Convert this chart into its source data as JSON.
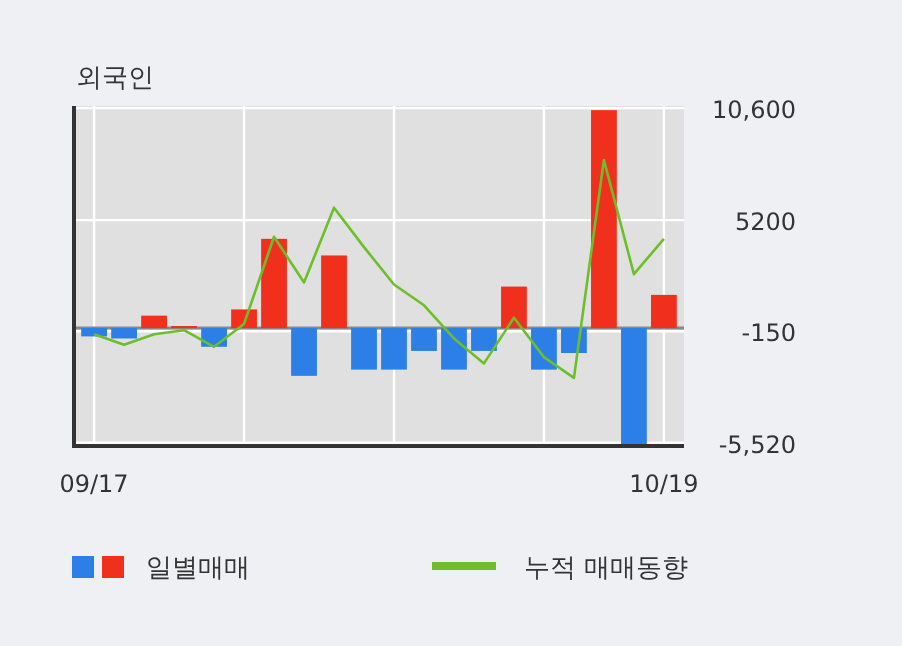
{
  "chart_data": {
    "type": "bar",
    "title": "외국인",
    "categories": [
      "09/17",
      null,
      null,
      null,
      null,
      null,
      null,
      null,
      null,
      null,
      null,
      null,
      null,
      null,
      null,
      null,
      null,
      null,
      null,
      "10/19"
    ],
    "series": [
      {
        "name": "일별매매",
        "colors": [
          "#2b7fe6",
          "#2b7fe6",
          "#f0301c",
          "#f0301c",
          "#2b7fe6",
          "#f0301c",
          "#f0301c",
          "#2b7fe6",
          "#f0301c",
          "#2b7fe6",
          "#2b7fe6",
          "#2b7fe6",
          "#2b7fe6",
          "#2b7fe6",
          "#f0301c",
          "#2b7fe6",
          "#2b7fe6",
          "#f0301c",
          "#2b7fe6",
          "#f0301c"
        ],
        "values": [
          -400,
          -500,
          600,
          100,
          -900,
          900,
          4300,
          -2300,
          3500,
          -2000,
          -2000,
          -1100,
          -2000,
          -1100,
          2000,
          -2000,
          -1200,
          10500,
          -5600,
          1600
        ]
      },
      {
        "name": "누적 매매동향",
        "type": "line",
        "color": "#6cbf2a",
        "values": [
          -300,
          -800,
          -300,
          -100,
          -900,
          200,
          4400,
          2200,
          5800,
          3900,
          2100,
          1100,
          -500,
          -1700,
          500,
          -1400,
          -2400,
          8100,
          2600,
          4300
        ]
      }
    ],
    "ylim": [
      -5680,
      10700
    ],
    "yticks": [
      {
        "value": 10600,
        "label": "10,600"
      },
      5200,
      -150,
      {
        "value": -5520,
        "label": "-5,520"
      }
    ],
    "grid": true,
    "legend": "bottom left"
  }
}
